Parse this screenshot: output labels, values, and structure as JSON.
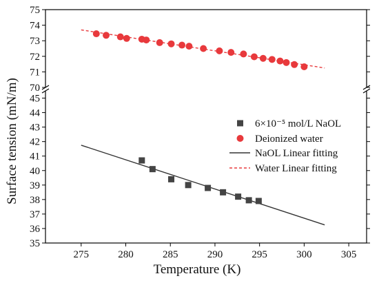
{
  "chart_data": {
    "type": "scatter",
    "xlabel": "Temperature (K)",
    "ylabel": "Surface tension (mN/m)",
    "xlim": [
      271,
      307
    ],
    "x_ticks": [
      275,
      280,
      285,
      290,
      295,
      300,
      305
    ],
    "y_upper_ticks": [
      70,
      71,
      72,
      73,
      74,
      75
    ],
    "y_lower_ticks": [
      35,
      36,
      37,
      38,
      39,
      40,
      41,
      42,
      43,
      44,
      45
    ],
    "ylim_upper": [
      70,
      75
    ],
    "ylim_lower": [
      35,
      45.5
    ],
    "axis_break": true,
    "grid": false,
    "legend_position": "right",
    "colors": {
      "naol": "#444444",
      "water": "#e8393c",
      "naol_fit": "#333333",
      "water_fit": "#e8393c"
    },
    "series": [
      {
        "name": "6×10⁻⁵ mol/L NaOL",
        "kind": "scatter",
        "marker": "square",
        "color": "#444444",
        "x": [
          281.8,
          283.0,
          285.1,
          287.0,
          289.2,
          290.9,
          292.6,
          293.8,
          294.9
        ],
        "y": [
          40.7,
          40.1,
          39.4,
          39.0,
          38.8,
          38.5,
          38.2,
          37.95,
          37.9
        ]
      },
      {
        "name": "Deionized water",
        "kind": "scatter",
        "marker": "circle",
        "color": "#e8393c",
        "x": [
          276.7,
          277.8,
          279.4,
          280.1,
          281.8,
          282.3,
          283.8,
          285.1,
          286.3,
          287.1,
          288.7,
          290.5,
          291.8,
          293.2,
          294.4,
          295.4,
          296.4,
          297.3,
          298.0,
          298.9,
          300.0
        ],
        "y": [
          73.45,
          73.35,
          73.25,
          73.15,
          73.1,
          73.05,
          72.88,
          72.8,
          72.72,
          72.65,
          72.5,
          72.35,
          72.25,
          72.15,
          71.97,
          71.87,
          71.8,
          71.7,
          71.6,
          71.47,
          71.33
        ]
      },
      {
        "name": "NaOL  Linear fitting",
        "kind": "line",
        "style": "solid",
        "color": "#333333",
        "x": [
          275,
          302.3
        ],
        "y": [
          41.75,
          36.25
        ]
      },
      {
        "name": "Water Linear fitting",
        "kind": "line",
        "style": "dashed",
        "color": "#e8393c",
        "x": [
          275,
          302.3
        ],
        "y": [
          73.7,
          71.25
        ]
      }
    ]
  }
}
